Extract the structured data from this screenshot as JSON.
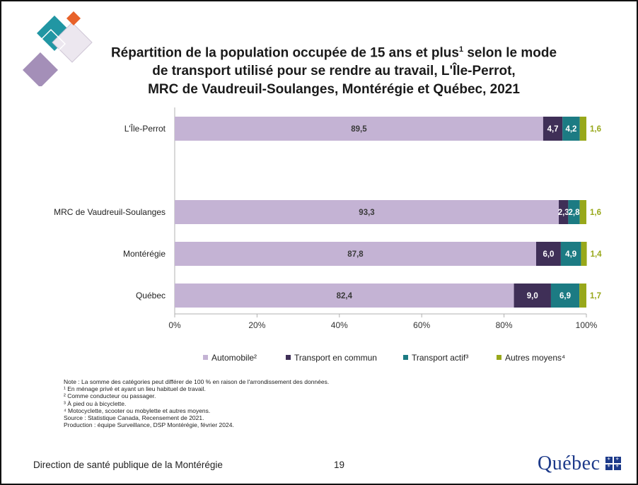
{
  "title": {
    "line1_pre": "Répartition de la population occupée de 15 ans et plus",
    "line1_sup": "1",
    "line1_post": " selon le mode",
    "line2": "de transport utilisé pour se rendre au travail, L'Île-Perrot,",
    "line3": "MRC de Vaudreuil-Soulanges, Montérégie et Québec, 2021"
  },
  "colors": {
    "automobile": "#c4b3d4",
    "transport_commun": "#3f2f57",
    "transport_actif": "#1c7b83",
    "autres": "#98a81a",
    "axis": "#b0b0b0"
  },
  "chart_data": {
    "type": "bar",
    "orientation": "horizontal",
    "stacked": true,
    "categories": [
      "L'Île-Perrot",
      "MRC de Vaudreuil-Soulanges",
      "Montérégie",
      "Québec"
    ],
    "series": [
      {
        "name": "Automobile²",
        "values": [
          89.5,
          93.3,
          87.8,
          82.4
        ],
        "labels": [
          "89,5",
          "93,3",
          "87,8",
          "82,4"
        ]
      },
      {
        "name": "Transport en commun",
        "values": [
          4.7,
          2.3,
          6.0,
          9.0
        ],
        "labels": [
          "4,7",
          "2,3",
          "6,0",
          "9,0"
        ]
      },
      {
        "name": "Transport actif³",
        "values": [
          4.2,
          2.8,
          4.9,
          6.9
        ],
        "labels": [
          "4,2",
          "2,8",
          "4,9",
          "6,9"
        ]
      },
      {
        "name": "Autres moyens⁴",
        "values": [
          1.6,
          1.6,
          1.4,
          1.7
        ],
        "labels": [
          "1,6",
          "1,6",
          "1,4",
          "1,7"
        ]
      }
    ],
    "xlim": [
      0,
      100
    ],
    "xticks": [
      "0%",
      "20%",
      "40%",
      "60%",
      "80%",
      "100%"
    ],
    "grid": false,
    "legend_position": "bottom"
  },
  "notes": [
    "Note : La somme des catégories peut différer de 100 % en raison de l'arrondissement des données.",
    "¹ En ménage privé et ayant un lieu habituel de travail.",
    "² Comme conducteur ou passager.",
    "³ À pied ou à bicyclette.",
    "⁴ Motocyclette, scooter ou mobylette et autres moyens.",
    "Source : Statistique Canada, Recensement de 2021.",
    "Production : équipe Surveillance, DSP Montérégie, février 2024."
  ],
  "footer": {
    "organization": "Direction de santé publique de la Montérégie",
    "page_number": "19",
    "logo_text": "Québec"
  }
}
